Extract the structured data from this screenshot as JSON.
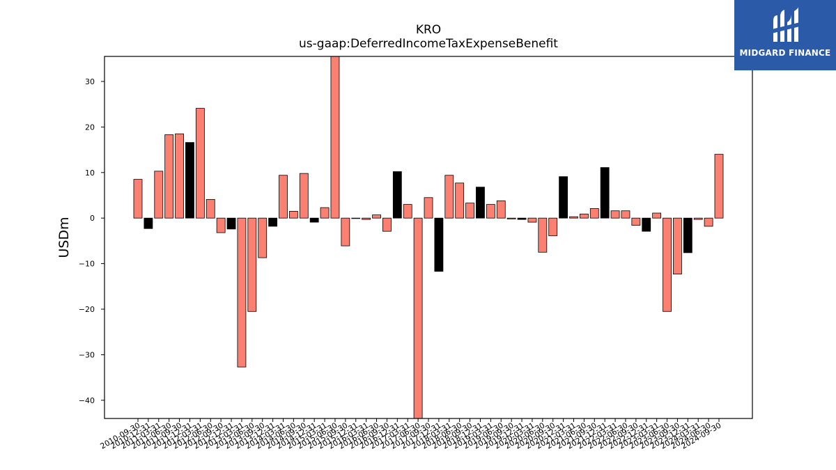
{
  "brand": {
    "name": "MIDGARD FINANCE",
    "bg_color": "#2a5aa8"
  },
  "colors": {
    "positive": "#fa8072",
    "negative": "#000000",
    "edge": "#000000"
  },
  "chart_data": {
    "type": "bar",
    "title": "KRO",
    "subtitle": "us-gaap:DeferredIncomeTaxExpenseBenefit",
    "xlabel": "",
    "ylabel": "USDm",
    "ylim": [
      -44,
      35.5
    ],
    "yticks": [
      30,
      20,
      10,
      0,
      -10,
      -20,
      -30,
      -40
    ],
    "grid": false,
    "categories": [
      "2010-09-30",
      "2010-12-31",
      "2011-03-31",
      "2011-06-30",
      "2011-09-30",
      "2011-12-31",
      "2012-03-31",
      "2012-06-30",
      "2012-09-30",
      "2012-12-31",
      "2013-03-31",
      "2013-06-30",
      "2013-09-30",
      "2013-12-31",
      "2014-03-31",
      "2014-06-30",
      "2014-09-30",
      "2014-12-31",
      "2015-03-31",
      "2015-06-30",
      "2015-09-30",
      "2015-12-31",
      "2016-03-31",
      "2016-06-30",
      "2016-09-30",
      "2016-12-31",
      "2017-03-31",
      "2017-06-30",
      "2017-09-30",
      "2017-12-31",
      "2018-03-31",
      "2018-06-30",
      "2018-09-30",
      "2018-12-31",
      "2019-03-31",
      "2019-06-30",
      "2019-09-30",
      "2019-12-31",
      "2020-03-31",
      "2020-06-30",
      "2020-09-30",
      "2020-12-31",
      "2021-03-31",
      "2021-06-30",
      "2021-09-30",
      "2021-12-31",
      "2022-03-31",
      "2022-06-30",
      "2022-09-30",
      "2022-12-31",
      "2023-03-31",
      "2023-06-30",
      "2023-09-30",
      "2023-12-31",
      "2024-03-31",
      "2024-06-30",
      "2024-09-30"
    ],
    "values": [
      8.5,
      -2.3,
      10.3,
      18.3,
      18.5,
      16.6,
      24.1,
      4.1,
      -3.2,
      -2.4,
      -32.7,
      -20.5,
      -8.7,
      -1.8,
      9.4,
      1.5,
      9.8,
      -0.9,
      2.3,
      36.5,
      -6.1,
      -0.1,
      -0.3,
      0.7,
      -2.9,
      10.2,
      3.0,
      -44.0,
      4.5,
      -11.7,
      9.4,
      7.7,
      3.3,
      6.8,
      3.0,
      3.8,
      -0.2,
      -0.3,
      -0.9,
      -7.5,
      -3.9,
      9.1,
      0.3,
      0.9,
      2.1,
      11.1,
      1.6,
      1.6,
      -1.6,
      -2.9,
      1.1,
      -20.5,
      -12.3,
      -7.6,
      -0.3,
      -1.8,
      14.0
    ],
    "bar_colors": [
      "salmon",
      "black",
      "salmon",
      "salmon",
      "salmon",
      "black",
      "salmon",
      "salmon",
      "salmon",
      "black",
      "salmon",
      "salmon",
      "salmon",
      "black",
      "salmon",
      "salmon",
      "salmon",
      "black",
      "salmon",
      "salmon",
      "salmon",
      "black",
      "salmon",
      "salmon",
      "salmon",
      "black",
      "salmon",
      "salmon",
      "salmon",
      "black",
      "salmon",
      "salmon",
      "salmon",
      "black",
      "salmon",
      "salmon",
      "salmon",
      "black",
      "salmon",
      "salmon",
      "salmon",
      "black",
      "salmon",
      "salmon",
      "salmon",
      "black",
      "salmon",
      "salmon",
      "salmon",
      "black",
      "salmon",
      "salmon",
      "salmon",
      "black",
      "salmon",
      "salmon",
      "salmon"
    ]
  }
}
